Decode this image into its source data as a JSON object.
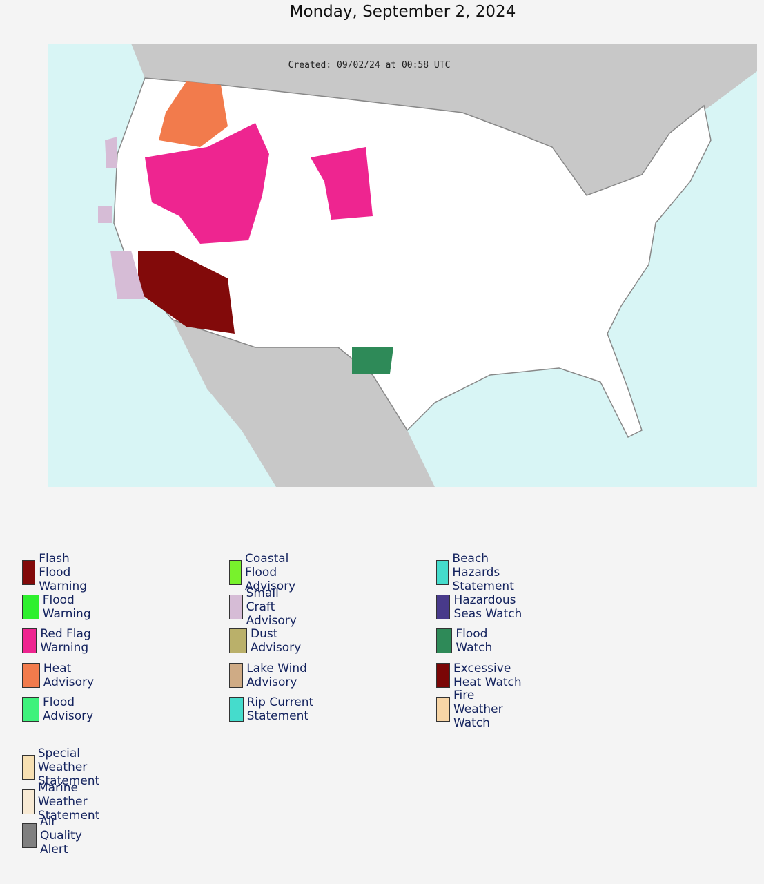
{
  "header": {
    "title": "Monday, September 2, 2024"
  },
  "map": {
    "caption": "Created: 09/02/24 at 00:58 UTC"
  },
  "legend": {
    "groups": [
      {
        "columns": [
          [
            {
              "label": "Flash Flood Warning",
              "color": "#820a0a"
            },
            {
              "label": "Flood Warning",
              "color": "#2ef02e"
            },
            {
              "label": "Red Flag Warning",
              "color": "#ee2590"
            },
            {
              "label": "Heat Advisory",
              "color": "#f27b4c"
            },
            {
              "label": "Flood Advisory",
              "color": "#3ef27c"
            }
          ],
          [
            {
              "label": "Coastal Flood Advisory",
              "color": "#78f22c"
            },
            {
              "label": "Small Craft Advisory",
              "color": "#d6bcd6"
            },
            {
              "label": "Dust Advisory",
              "color": "#bab06a"
            },
            {
              "label": "Lake Wind Advisory",
              "color": "#cfab85"
            },
            {
              "label": "Rip Current Statement",
              "color": "#45dccc"
            }
          ],
          [
            {
              "label": "Beach Hazards Statement",
              "color": "#45dccc"
            },
            {
              "label": "Hazardous Seas Watch",
              "color": "#483a8a"
            },
            {
              "label": "Flood Watch",
              "color": "#2e8a58"
            },
            {
              "label": "Excessive Heat Watch",
              "color": "#7a0606"
            },
            {
              "label": "Fire Weather Watch",
              "color": "#f7d5a6"
            }
          ]
        ]
      },
      {
        "columns": [
          [
            {
              "label": "Special Weather Statement",
              "color": "#f7e0b2"
            },
            {
              "label": "Marine Weather Statement",
              "color": "#f8ead4"
            },
            {
              "label": "Air Quality Alert",
              "color": "#7f7f7f"
            }
          ]
        ]
      }
    ]
  }
}
